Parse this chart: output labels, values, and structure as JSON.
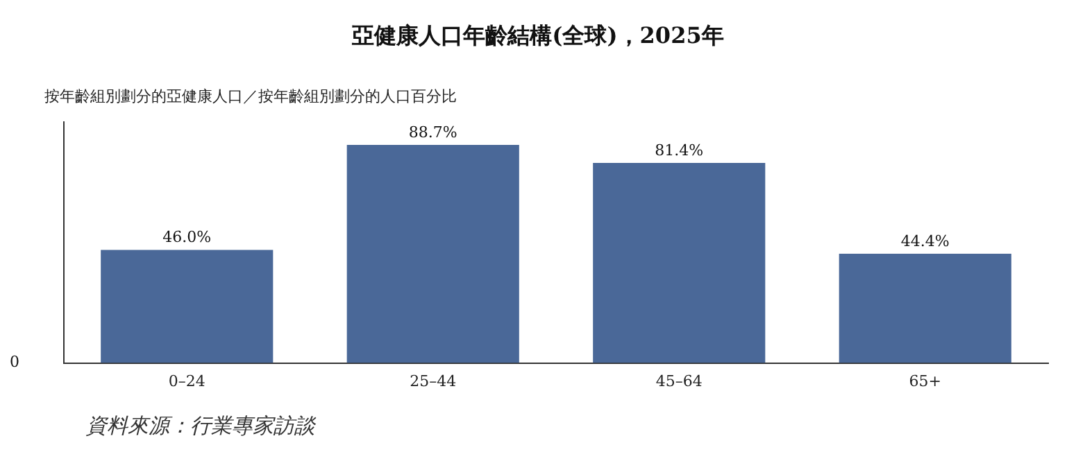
{
  "chart_data": {
    "type": "bar",
    "title": "亞健康人口年齡結構(全球)，2025年",
    "ylabel": "按年齡組別劃分的亞健康人口／按年齡組別劃分的人口百分比",
    "categories": [
      "0–24",
      "25–44",
      "45–64",
      "65+"
    ],
    "values": [
      46.0,
      88.7,
      81.4,
      44.4
    ],
    "value_labels": [
      "46.0%",
      "88.7%",
      "81.4%",
      "44.4%"
    ],
    "color": "#4a6898",
    "ylim": [
      0,
      98
    ],
    "grid": false,
    "legend": false,
    "annotations": [
      "0",
      "資料來源：行業專家訪談"
    ]
  }
}
